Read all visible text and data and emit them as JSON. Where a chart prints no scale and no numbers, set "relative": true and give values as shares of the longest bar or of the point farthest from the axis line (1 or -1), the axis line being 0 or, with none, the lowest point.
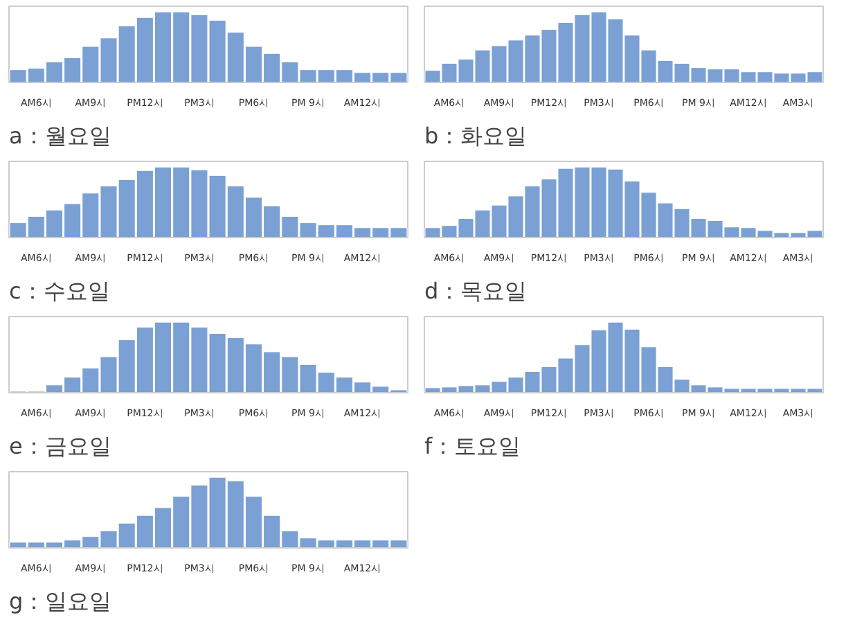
{
  "chart_data": [
    {
      "type": "bar",
      "relative": true,
      "title": "a：월요일",
      "color": "#7aa0d4",
      "grid": false,
      "categories": [
        null,
        "AM6시",
        null,
        null,
        "AM9시",
        null,
        null,
        "PM12시",
        null,
        null,
        "PM3시",
        null,
        null,
        "PM6시",
        null,
        null,
        "PM 9시",
        null,
        null,
        "AM12시",
        null,
        null
      ],
      "values": [
        0.18,
        0.2,
        0.29,
        0.35,
        0.51,
        0.63,
        0.8,
        0.92,
        1,
        1,
        0.96,
        0.88,
        0.71,
        0.51,
        0.41,
        0.29,
        0.18,
        0.18,
        0.18,
        0.14,
        0.14,
        0.14
      ]
    },
    {
      "type": "bar",
      "relative": true,
      "title": "b：화요일",
      "color": "#7aa0d4",
      "grid": false,
      "categories": [
        null,
        "AM6시",
        null,
        null,
        "AM9시",
        null,
        null,
        "PM12시",
        null,
        null,
        "PM3시",
        null,
        null,
        "PM6시",
        null,
        null,
        "PM 9시",
        null,
        null,
        "AM12시",
        null,
        null,
        "AM3시",
        null
      ],
      "values": [
        0.17,
        0.27,
        0.33,
        0.46,
        0.52,
        0.6,
        0.67,
        0.75,
        0.85,
        0.96,
        1,
        0.9,
        0.67,
        0.46,
        0.31,
        0.27,
        0.21,
        0.19,
        0.19,
        0.15,
        0.15,
        0.13,
        0.13,
        0.15
      ]
    },
    {
      "type": "bar",
      "relative": true,
      "title": "c：수요일",
      "color": "#7aa0d4",
      "grid": false,
      "categories": [
        null,
        "AM6시",
        null,
        null,
        "AM9시",
        null,
        null,
        "PM12시",
        null,
        null,
        "PM3시",
        null,
        null,
        "PM6시",
        null,
        null,
        "PM 9시",
        null,
        null,
        "AM12시",
        null,
        null
      ],
      "values": [
        0.21,
        0.3,
        0.39,
        0.48,
        0.63,
        0.73,
        0.82,
        0.95,
        1,
        1,
        0.96,
        0.88,
        0.73,
        0.57,
        0.45,
        0.3,
        0.21,
        0.18,
        0.18,
        0.14,
        0.14,
        0.14
      ]
    },
    {
      "type": "bar",
      "relative": true,
      "title": "d：목요일",
      "color": "#7aa0d4",
      "grid": false,
      "categories": [
        null,
        "AM6시",
        null,
        null,
        "AM9시",
        null,
        null,
        "PM12시",
        null,
        null,
        "PM3시",
        null,
        null,
        "PM6시",
        null,
        null,
        "PM 9시",
        null,
        null,
        "AM12시",
        null,
        null,
        "AM3시",
        null
      ],
      "values": [
        0.14,
        0.17,
        0.27,
        0.39,
        0.46,
        0.59,
        0.73,
        0.83,
        0.98,
        1,
        1,
        0.97,
        0.8,
        0.64,
        0.49,
        0.41,
        0.27,
        0.24,
        0.15,
        0.14,
        0.1,
        0.07,
        0.07,
        0.1
      ]
    },
    {
      "type": "bar",
      "relative": true,
      "title": "e：금요일",
      "color": "#7aa0d4",
      "grid": false,
      "categories": [
        null,
        "AM6시",
        null,
        null,
        "AM9시",
        null,
        null,
        "PM12시",
        null,
        null,
        "PM3시",
        null,
        null,
        "PM6시",
        null,
        null,
        "PM 9시",
        null,
        null,
        "AM12시",
        null,
        null
      ],
      "values": [
        0.02,
        0.02,
        0.11,
        0.22,
        0.35,
        0.51,
        0.75,
        0.93,
        1,
        1,
        0.93,
        0.84,
        0.78,
        0.69,
        0.58,
        0.51,
        0.4,
        0.29,
        0.22,
        0.15,
        0.09,
        0.04
      ]
    },
    {
      "type": "bar",
      "relative": true,
      "title": "f：토요일",
      "color": "#7aa0d4",
      "grid": false,
      "categories": [
        null,
        "AM6시",
        null,
        null,
        "AM9시",
        null,
        null,
        "PM12시",
        null,
        null,
        "PM3시",
        null,
        null,
        "PM6시",
        null,
        null,
        "PM 9시",
        null,
        null,
        "AM12시",
        null,
        null,
        "AM3시",
        null
      ],
      "values": [
        0.07,
        0.08,
        0.1,
        0.11,
        0.16,
        0.22,
        0.3,
        0.37,
        0.49,
        0.68,
        0.89,
        1,
        0.9,
        0.65,
        0.37,
        0.19,
        0.11,
        0.08,
        0.06,
        0.06,
        0.06,
        0.06,
        0.06,
        0.06
      ]
    },
    {
      "type": "bar",
      "relative": true,
      "title": "g：일요일",
      "color": "#7aa0d4",
      "grid": false,
      "categories": [
        null,
        "AM6시",
        null,
        null,
        "AM9시",
        null,
        null,
        "PM12시",
        null,
        null,
        "PM3시",
        null,
        null,
        "PM6시",
        null,
        null,
        "PM 9시",
        null,
        null,
        "AM12시",
        null,
        null
      ],
      "values": [
        0.08,
        0.08,
        0.08,
        0.11,
        0.16,
        0.24,
        0.35,
        0.46,
        0.57,
        0.73,
        0.89,
        1,
        0.95,
        0.73,
        0.46,
        0.24,
        0.14,
        0.11,
        0.11,
        0.11,
        0.11,
        0.11
      ]
    }
  ]
}
